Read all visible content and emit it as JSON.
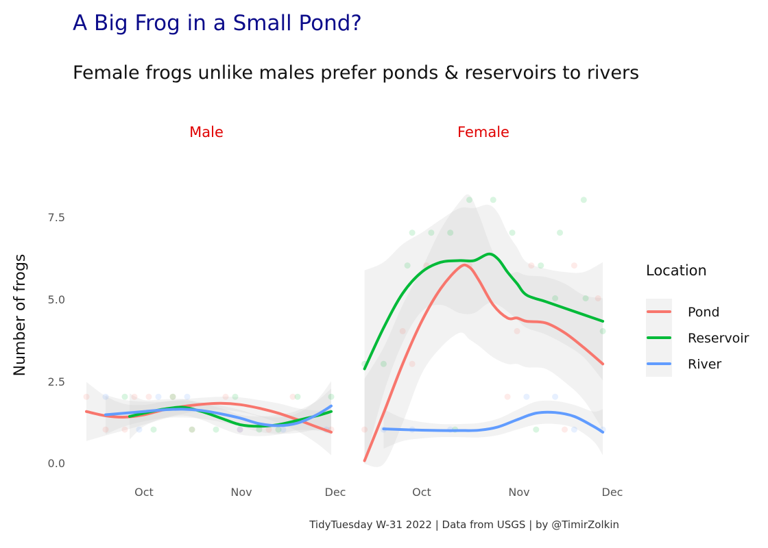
{
  "title": "A Big Frog in a Small Pond?",
  "subtitle": "Female frogs unlike males prefer ponds & reservoirs to rivers",
  "caption": "TidyTuesday W-31 2022 | Data from USGS | by @TimirZolkin",
  "chart_data": {
    "type": "line",
    "ylabel": "Number of frogs",
    "xlabel": "",
    "ylim": [
      0,
      8.5
    ],
    "y_ticks": [
      "0.0",
      "2.5",
      "5.0",
      "7.5"
    ],
    "x_ticks": [
      "Oct",
      "Nov",
      "Dec"
    ],
    "legend": {
      "title": "Location",
      "placement": "right"
    },
    "grid": false,
    "panels": [
      {
        "label": "Male",
        "series": [
          {
            "name": "Pond",
            "color": "#F8766D",
            "x": [
              -0.6,
              -0.4,
              -0.2,
              0.0,
              0.2,
              0.4,
              0.6,
              0.8,
              1.0,
              1.2,
              1.4,
              1.6,
              1.8,
              1.95
            ],
            "y": [
              1.55,
              1.42,
              1.38,
              1.45,
              1.6,
              1.7,
              1.77,
              1.8,
              1.76,
              1.65,
              1.5,
              1.3,
              1.08,
              0.92
            ],
            "band_width": [
              0.9,
              0.6,
              0.4,
              0.3,
              0.25,
              0.22,
              0.2,
              0.2,
              0.22,
              0.25,
              0.3,
              0.35,
              0.5,
              0.7
            ]
          },
          {
            "name": "Reservoir",
            "color": "#00BA38",
            "x": [
              -0.15,
              0.0,
              0.2,
              0.4,
              0.6,
              0.8,
              1.0,
              1.2,
              1.4,
              1.6,
              1.8,
              1.95
            ],
            "y": [
              1.4,
              1.5,
              1.62,
              1.68,
              1.55,
              1.35,
              1.15,
              1.1,
              1.15,
              1.28,
              1.42,
              1.55
            ],
            "band_width": [
              0.7,
              0.4,
              0.3,
              0.25,
              0.25,
              0.3,
              0.3,
              0.3,
              0.3,
              0.3,
              0.45,
              0.7
            ]
          },
          {
            "name": "River",
            "color": "#619CFF",
            "x": [
              -0.4,
              -0.2,
              0.0,
              0.2,
              0.4,
              0.6,
              0.8,
              1.0,
              1.2,
              1.4,
              1.6,
              1.8,
              1.95
            ],
            "y": [
              1.45,
              1.5,
              1.55,
              1.6,
              1.62,
              1.58,
              1.48,
              1.35,
              1.18,
              1.12,
              1.2,
              1.45,
              1.72
            ],
            "band_width": [
              0.6,
              0.4,
              0.3,
              0.25,
              0.25,
              0.25,
              0.25,
              0.25,
              0.25,
              0.25,
              0.3,
              0.45,
              0.75
            ]
          }
        ]
      },
      {
        "label": "Female",
        "series": [
          {
            "name": "Pond",
            "color": "#F8766D",
            "x": [
              -0.6,
              -0.4,
              -0.2,
              0.0,
              0.2,
              0.4,
              0.5,
              0.6,
              0.75,
              0.9,
              1.0,
              1.1,
              1.3,
              1.5,
              1.7,
              1.9
            ],
            "y": [
              0.05,
              1.5,
              3.0,
              4.3,
              5.3,
              5.95,
              5.95,
              5.55,
              4.8,
              4.4,
              4.4,
              4.3,
              4.25,
              3.95,
              3.5,
              3.0
            ],
            "band_width": [
              2.5,
              2.0,
              1.8,
              1.6,
              1.8,
              2.0,
              2.2,
              2.0,
              1.6,
              1.4,
              1.4,
              1.4,
              1.4,
              1.5,
              1.6,
              2.0
            ]
          },
          {
            "name": "Reservoir",
            "color": "#00BA38",
            "x": [
              -0.6,
              -0.4,
              -0.2,
              0.0,
              0.2,
              0.4,
              0.55,
              0.7,
              0.8,
              0.9,
              1.0,
              1.1,
              1.3,
              1.5,
              1.7,
              1.9
            ],
            "y": [
              2.85,
              4.1,
              5.15,
              5.8,
              6.1,
              6.15,
              6.15,
              6.35,
              6.2,
              5.8,
              5.45,
              5.1,
              4.9,
              4.7,
              4.5,
              4.3
            ],
            "band_width": [
              3.0,
              2.0,
              1.5,
              1.2,
              1.3,
              1.6,
              1.6,
              1.5,
              1.4,
              1.2,
              1.1,
              1.0,
              1.0,
              1.1,
              1.3,
              1.8
            ]
          },
          {
            "name": "River",
            "color": "#619CFF",
            "x": [
              -0.4,
              -0.2,
              0.0,
              0.2,
              0.4,
              0.6,
              0.8,
              1.0,
              1.2,
              1.4,
              1.6,
              1.8,
              1.9
            ],
            "y": [
              1.02,
              1.0,
              0.98,
              0.97,
              0.97,
              0.98,
              1.08,
              1.3,
              1.5,
              1.52,
              1.4,
              1.1,
              0.92
            ],
            "band_width": [
              0.6,
              0.35,
              0.25,
              0.2,
              0.2,
              0.22,
              0.25,
              0.3,
              0.35,
              0.35,
              0.35,
              0.45,
              0.7
            ]
          }
        ]
      }
    ],
    "points_note_free": true,
    "points": [
      {
        "panel": 0,
        "loc": "Pond",
        "x": -0.6,
        "y": 2
      },
      {
        "panel": 0,
        "loc": "Pond",
        "x": -0.4,
        "y": 1
      },
      {
        "panel": 0,
        "loc": "Pond",
        "x": -0.1,
        "y": 2
      },
      {
        "panel": 0,
        "loc": "Pond",
        "x": 0.05,
        "y": 2
      },
      {
        "panel": 0,
        "loc": "Pond",
        "x": 0.3,
        "y": 2
      },
      {
        "panel": 0,
        "loc": "Pond",
        "x": 0.5,
        "y": 1
      },
      {
        "panel": 0,
        "loc": "Pond",
        "x": 0.85,
        "y": 2
      },
      {
        "panel": 0,
        "loc": "Pond",
        "x": 1.0,
        "y": 1
      },
      {
        "panel": 0,
        "loc": "Pond",
        "x": 1.3,
        "y": 1
      },
      {
        "panel": 0,
        "loc": "Pond",
        "x": 1.55,
        "y": 2
      },
      {
        "panel": 0,
        "loc": "Pond",
        "x": 1.95,
        "y": 1
      },
      {
        "panel": 0,
        "loc": "Pond",
        "x": -0.2,
        "y": 1
      },
      {
        "panel": 0,
        "loc": "Reservoir",
        "x": -0.2,
        "y": 2
      },
      {
        "panel": 0,
        "loc": "Reservoir",
        "x": 0.1,
        "y": 1
      },
      {
        "panel": 0,
        "loc": "Reservoir",
        "x": 0.3,
        "y": 2
      },
      {
        "panel": 0,
        "loc": "Reservoir",
        "x": 0.5,
        "y": 1
      },
      {
        "panel": 0,
        "loc": "Reservoir",
        "x": 0.75,
        "y": 1
      },
      {
        "panel": 0,
        "loc": "Reservoir",
        "x": 0.95,
        "y": 2
      },
      {
        "panel": 0,
        "loc": "Reservoir",
        "x": 1.2,
        "y": 1
      },
      {
        "panel": 0,
        "loc": "Reservoir",
        "x": 1.4,
        "y": 1
      },
      {
        "panel": 0,
        "loc": "Reservoir",
        "x": 1.6,
        "y": 2
      },
      {
        "panel": 0,
        "loc": "Reservoir",
        "x": 1.95,
        "y": 2
      },
      {
        "panel": 0,
        "loc": "River",
        "x": -0.4,
        "y": 2
      },
      {
        "panel": 0,
        "loc": "River",
        "x": -0.05,
        "y": 1
      },
      {
        "panel": 0,
        "loc": "River",
        "x": 0.15,
        "y": 2
      },
      {
        "panel": 0,
        "loc": "River",
        "x": 0.45,
        "y": 2
      },
      {
        "panel": 0,
        "loc": "River",
        "x": 1.0,
        "y": 1
      },
      {
        "panel": 0,
        "loc": "River",
        "x": 1.45,
        "y": 1
      },
      {
        "panel": 0,
        "loc": "River",
        "x": 1.9,
        "y": 1
      },
      {
        "panel": 1,
        "loc": "Pond",
        "x": -0.6,
        "y": 1
      },
      {
        "panel": 1,
        "loc": "Pond",
        "x": -0.2,
        "y": 4
      },
      {
        "panel": 1,
        "loc": "Pond",
        "x": -0.1,
        "y": 3
      },
      {
        "panel": 1,
        "loc": "Pond",
        "x": 0.05,
        "y": 6
      },
      {
        "panel": 1,
        "loc": "Pond",
        "x": 0.5,
        "y": 6
      },
      {
        "panel": 1,
        "loc": "Pond",
        "x": 0.9,
        "y": 2
      },
      {
        "panel": 1,
        "loc": "Pond",
        "x": 1.0,
        "y": 4
      },
      {
        "panel": 1,
        "loc": "Pond",
        "x": 1.15,
        "y": 6
      },
      {
        "panel": 1,
        "loc": "Pond",
        "x": 1.6,
        "y": 6
      },
      {
        "panel": 1,
        "loc": "Pond",
        "x": 1.85,
        "y": 5
      },
      {
        "panel": 1,
        "loc": "Pond",
        "x": 1.5,
        "y": 1
      },
      {
        "panel": 1,
        "loc": "Reservoir",
        "x": -0.6,
        "y": 3
      },
      {
        "panel": 1,
        "loc": "Reservoir",
        "x": -0.4,
        "y": 3
      },
      {
        "panel": 1,
        "loc": "Reservoir",
        "x": -0.15,
        "y": 6
      },
      {
        "panel": 1,
        "loc": "Reservoir",
        "x": -0.1,
        "y": 7
      },
      {
        "panel": 1,
        "loc": "Reservoir",
        "x": 0.1,
        "y": 7
      },
      {
        "panel": 1,
        "loc": "Reservoir",
        "x": 0.3,
        "y": 7
      },
      {
        "panel": 1,
        "loc": "Reservoir",
        "x": 0.5,
        "y": 8
      },
      {
        "panel": 1,
        "loc": "Reservoir",
        "x": 0.75,
        "y": 8
      },
      {
        "panel": 1,
        "loc": "Reservoir",
        "x": 0.95,
        "y": 7
      },
      {
        "panel": 1,
        "loc": "Reservoir",
        "x": 1.25,
        "y": 6
      },
      {
        "panel": 1,
        "loc": "Reservoir",
        "x": 1.4,
        "y": 5
      },
      {
        "panel": 1,
        "loc": "Reservoir",
        "x": 1.45,
        "y": 7
      },
      {
        "panel": 1,
        "loc": "Reservoir",
        "x": 1.7,
        "y": 8
      },
      {
        "panel": 1,
        "loc": "Reservoir",
        "x": 1.72,
        "y": 5
      },
      {
        "panel": 1,
        "loc": "Reservoir",
        "x": 1.9,
        "y": 4
      },
      {
        "panel": 1,
        "loc": "Reservoir",
        "x": 1.2,
        "y": 1
      },
      {
        "panel": 1,
        "loc": "Reservoir",
        "x": 0.35,
        "y": 1
      },
      {
        "panel": 1,
        "loc": "River",
        "x": -0.4,
        "y": 1
      },
      {
        "panel": 1,
        "loc": "River",
        "x": -0.1,
        "y": 1
      },
      {
        "panel": 1,
        "loc": "River",
        "x": 0.3,
        "y": 1
      },
      {
        "panel": 1,
        "loc": "River",
        "x": 1.1,
        "y": 2
      },
      {
        "panel": 1,
        "loc": "River",
        "x": 1.4,
        "y": 2
      },
      {
        "panel": 1,
        "loc": "River",
        "x": 1.6,
        "y": 1
      },
      {
        "panel": 1,
        "loc": "River",
        "x": 1.9,
        "y": 1
      }
    ]
  }
}
